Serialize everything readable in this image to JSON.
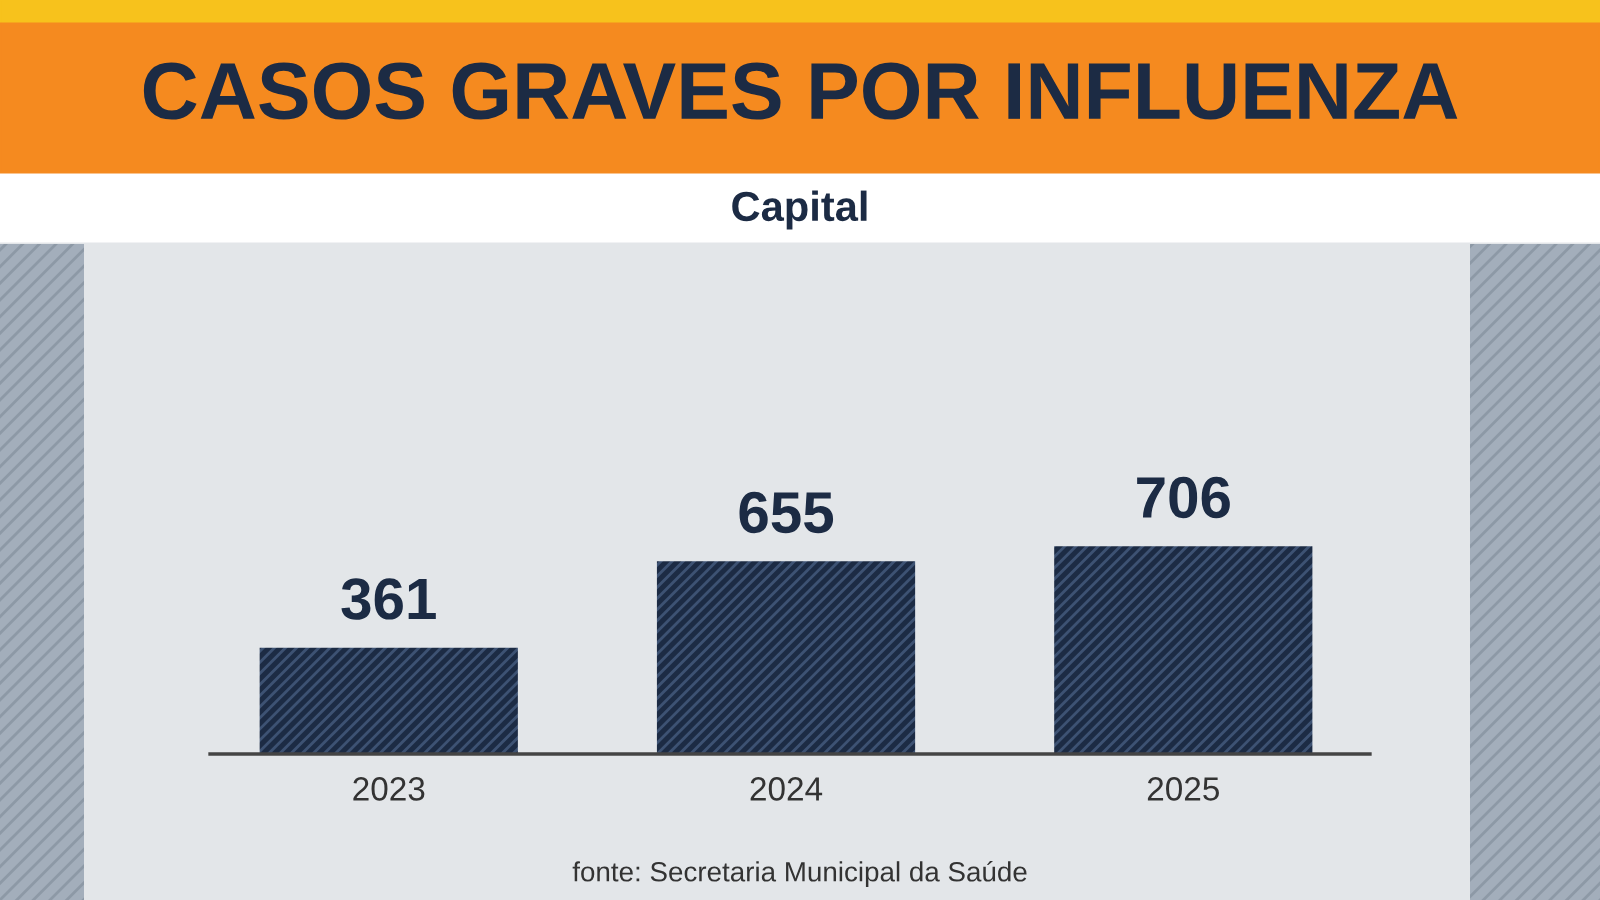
{
  "chart_data": {
    "type": "bar",
    "title": "CASOS GRAVES POR INFLUENZA",
    "subtitle": "Capital",
    "categories": [
      "2023",
      "2024",
      "2025"
    ],
    "values": [
      361,
      655,
      706
    ],
    "color": "#1c2b44",
    "data_labels": true,
    "annotations": [
      "fonte: Secretaria Municipal da Saúde"
    ]
  }
}
